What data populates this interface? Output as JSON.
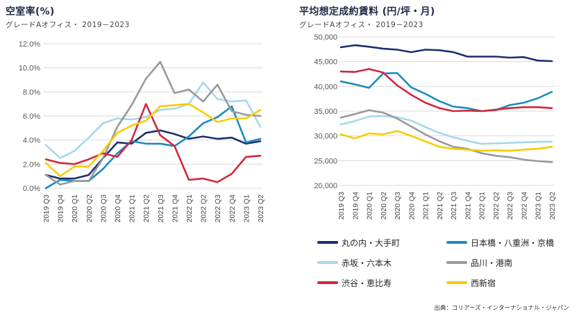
{
  "chart_data": [
    {
      "type": "line",
      "title": "空室率(%)",
      "subtitle": "グレードAオフィス・ 2019－2023",
      "categories": [
        "2019 Q3",
        "2019 Q4",
        "2020 Q1",
        "2020 Q2",
        "2020 Q3",
        "2020 Q4",
        "2021 Q1",
        "2021 Q2",
        "2021 Q3",
        "2021 Q4",
        "2022 Q1",
        "2022 Q2",
        "2022 Q3",
        "2022 Q4",
        "2023 Q1",
        "2023 Q2"
      ],
      "yticks": [
        "0.0%",
        "2.0%",
        "4.0%",
        "6.0%",
        "8.0%",
        "10.0%",
        "12.0%"
      ],
      "ylim": [
        0,
        12
      ],
      "grid": true,
      "series": [
        {
          "name": "丸の内・大手町",
          "color": "#1b2f6e",
          "values": [
            1.1,
            0.8,
            0.8,
            1.1,
            2.5,
            3.8,
            3.7,
            4.6,
            4.8,
            4.5,
            4.1,
            4.3,
            4.1,
            4.2,
            3.7,
            3.9
          ]
        },
        {
          "name": "日本橋・八重洲・京橋",
          "color": "#1a8bbd",
          "values": [
            0.0,
            0.7,
            0.6,
            0.6,
            1.6,
            2.9,
            3.9,
            3.7,
            3.7,
            3.5,
            4.3,
            5.4,
            5.9,
            6.8,
            3.8,
            4.1
          ]
        },
        {
          "name": "赤坂・六本木",
          "color": "#a6d8ea",
          "values": [
            3.6,
            2.5,
            3.1,
            4.2,
            5.4,
            5.8,
            5.7,
            5.9,
            6.5,
            6.6,
            7.0,
            8.8,
            7.4,
            7.2,
            7.3,
            5.1
          ]
        },
        {
          "name": "品川・港南",
          "color": "#999999",
          "values": [
            1.1,
            0.3,
            0.6,
            0.6,
            2.5,
            5.1,
            6.9,
            9.1,
            10.5,
            7.9,
            8.2,
            7.2,
            8.6,
            6.4,
            6.1,
            6.0
          ]
        },
        {
          "name": "渋谷・恵比寿",
          "color": "#d2263d",
          "values": [
            2.4,
            2.1,
            2.0,
            2.4,
            2.9,
            2.6,
            4.0,
            7.0,
            4.4,
            3.5,
            0.7,
            0.8,
            0.5,
            1.2,
            2.6,
            2.7
          ]
        },
        {
          "name": "西新宿",
          "color": "#f6cd00",
          "values": [
            2.1,
            1.0,
            1.8,
            1.8,
            3.1,
            4.6,
            5.2,
            5.6,
            6.8,
            6.9,
            7.0,
            6.3,
            5.5,
            5.8,
            5.8,
            6.5
          ]
        }
      ]
    },
    {
      "type": "line",
      "title": "平均想定成約賃料 (円/坪・月)",
      "subtitle": "グレードAオフィス・ 2019－2023",
      "categories": [
        "2019 Q3",
        "2019 Q4",
        "2020 Q1",
        "2020 Q2",
        "2020 Q3",
        "2020 Q4",
        "2021 Q1",
        "2021 Q2",
        "2021 Q3",
        "2021 Q4",
        "2022 Q1",
        "2022 Q2",
        "2022 Q3",
        "2022 Q4",
        "2023 Q1",
        "2023 Q2"
      ],
      "yticks": [
        "20,000",
        "25,000",
        "30,000",
        "35,000",
        "40,000",
        "45,000",
        "50,000"
      ],
      "ylim": [
        20000,
        50000
      ],
      "grid": true,
      "series": [
        {
          "name": "丸の内・大手町",
          "color": "#1b2f6e",
          "values": [
            47900,
            48300,
            48000,
            47600,
            47400,
            46900,
            47400,
            47300,
            46900,
            46000,
            46000,
            46000,
            45800,
            45900,
            45200,
            45100
          ]
        },
        {
          "name": "日本橋・八重洲・京橋",
          "color": "#1a8bbd",
          "values": [
            41000,
            40400,
            39700,
            42600,
            42700,
            39800,
            38500,
            37000,
            35900,
            35600,
            35000,
            35200,
            36200,
            36700,
            37600,
            38900
          ]
        },
        {
          "name": "赤坂・六本木",
          "color": "#a6d8ea",
          "values": [
            32300,
            33000,
            33900,
            34000,
            33800,
            33100,
            31800,
            30600,
            29700,
            29000,
            28400,
            28500,
            28600,
            28700,
            28800,
            28800
          ]
        },
        {
          "name": "品川・港南",
          "color": "#999999",
          "values": [
            33700,
            34400,
            35200,
            34700,
            33500,
            31900,
            30300,
            28900,
            27800,
            27400,
            26500,
            26000,
            25700,
            25200,
            24900,
            24700
          ]
        },
        {
          "name": "渋谷・恵比寿",
          "color": "#d2263d",
          "values": [
            43000,
            42900,
            43500,
            42800,
            40200,
            38300,
            36700,
            35600,
            35000,
            35100,
            35000,
            35300,
            35600,
            35800,
            35800,
            35600
          ]
        },
        {
          "name": "西新宿",
          "color": "#f6cd00",
          "values": [
            30300,
            29500,
            30500,
            30300,
            31000,
            30000,
            28900,
            27800,
            27400,
            27200,
            27000,
            27100,
            27000,
            27200,
            27400,
            27800
          ]
        }
      ]
    }
  ],
  "legend": [
    {
      "label": "丸の内・大手町",
      "color": "#1b2f6e"
    },
    {
      "label": "日本橋・八重洲・京橋",
      "color": "#1a8bbd"
    },
    {
      "label": "赤坂・六本木",
      "color": "#a6d8ea"
    },
    {
      "label": "品川・港南",
      "color": "#999999"
    },
    {
      "label": "渋谷・恵比寿",
      "color": "#d2263d"
    },
    {
      "label": "西新宿",
      "color": "#f6cd00"
    }
  ],
  "source": "出典：コリアーズ・インターナショナル・ジャパン"
}
